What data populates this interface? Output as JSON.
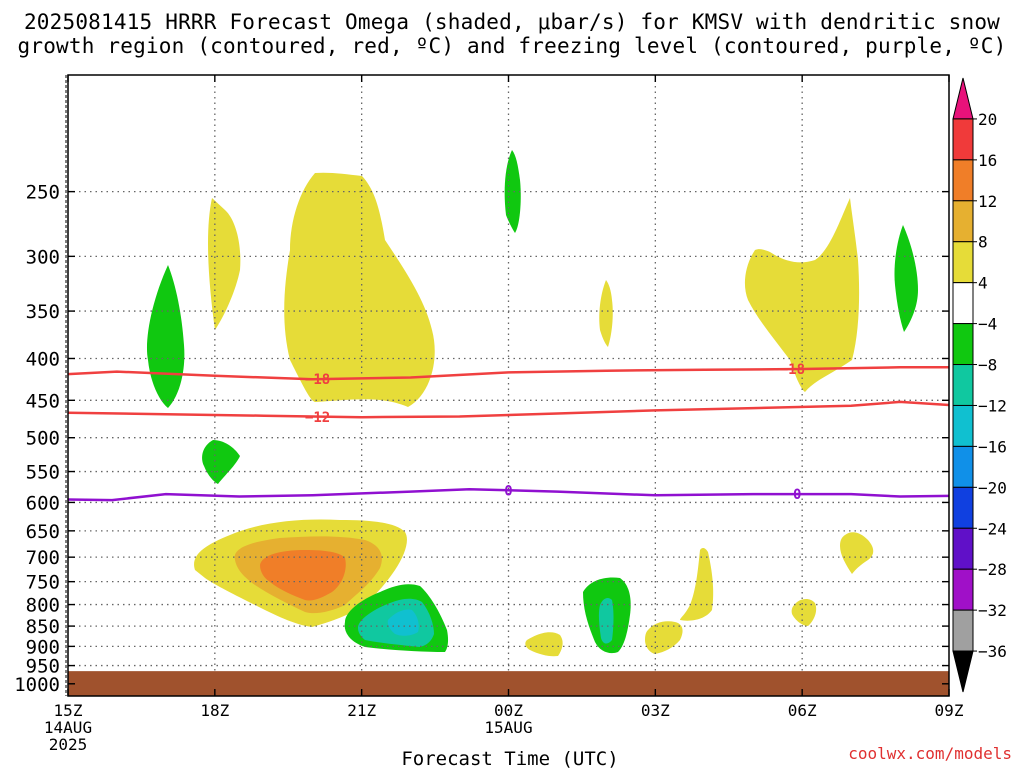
{
  "title_line1": "2025081415 HRRR Forecast Omega (shaded, μbar/s) for KMSV with dendritic snow",
  "title_line2": "growth region (contoured, red, ºC) and freezing level (contoured, purple, ºC)",
  "credit": "coolwx.com/models",
  "chart_data": {
    "type": "heatmap",
    "xlabel": "Forecast Time (UTC)",
    "ylabel": "",
    "x_ticks": [
      {
        "hours": 0,
        "label": [
          "15Z",
          "14AUG",
          "2025"
        ]
      },
      {
        "hours": 3,
        "label": [
          "18Z"
        ]
      },
      {
        "hours": 6,
        "label": [
          "21Z"
        ]
      },
      {
        "hours": 9,
        "label": [
          "00Z",
          "15AUG"
        ]
      },
      {
        "hours": 12,
        "label": [
          "03Z"
        ]
      },
      {
        "hours": 15,
        "label": [
          "06Z"
        ]
      },
      {
        "hours": 18,
        "label": [
          "09Z"
        ]
      }
    ],
    "xlim": [
      0,
      18
    ],
    "ylim_hPa": [
      1035,
      180
    ],
    "y_ticks": [
      250,
      300,
      350,
      400,
      450,
      500,
      550,
      600,
      650,
      700,
      750,
      800,
      850,
      900,
      950,
      1000
    ],
    "grid": true,
    "colorbar": {
      "labels": [
        "20",
        "16",
        "12",
        "8",
        "4",
        "−4",
        "−8",
        "−12",
        "−16",
        "−20",
        "−24",
        "−28",
        "−32",
        "−36"
      ],
      "colors": [
        "#e8127a",
        "#f03a3a",
        "#f07e28",
        "#e6b030",
        "#e6dc38",
        "#ffffff",
        "#10c810",
        "#10c8a0",
        "#10c0d0",
        "#1090e8",
        "#1040e0",
        "#6010c8",
        "#a010c8",
        "#a0a0a0",
        "#000000"
      ]
    },
    "contours": [
      {
        "level": "−18",
        "color": "#f04040",
        "points": [
          [
            0,
            418
          ],
          [
            1,
            415
          ],
          [
            3,
            420
          ],
          [
            5,
            424
          ],
          [
            7,
            422
          ],
          [
            9,
            416
          ],
          [
            11,
            414
          ],
          [
            13,
            413
          ],
          [
            15,
            412
          ],
          [
            17,
            410
          ],
          [
            18,
            410
          ]
        ]
      },
      {
        "level": "−12",
        "color": "#f04040",
        "points": [
          [
            0,
            466
          ],
          [
            2,
            468
          ],
          [
            4,
            470
          ],
          [
            6,
            472
          ],
          [
            8,
            471
          ],
          [
            10,
            467
          ],
          [
            12,
            463
          ],
          [
            14,
            460
          ],
          [
            16,
            457
          ],
          [
            17,
            452
          ],
          [
            18,
            456
          ]
        ]
      },
      {
        "level": "0",
        "color": "#9010d0",
        "points": [
          [
            0,
            595
          ],
          [
            0.9,
            596
          ],
          [
            2,
            586
          ],
          [
            3.5,
            590
          ],
          [
            5,
            588
          ],
          [
            7,
            582
          ],
          [
            8.2,
            578
          ],
          [
            10,
            582
          ],
          [
            12,
            588
          ],
          [
            14,
            586
          ],
          [
            16,
            586
          ],
          [
            17,
            590
          ],
          [
            18,
            589
          ]
        ]
      }
    ],
    "contour_label_positions": [
      {
        "level": "−18",
        "at": [
          5.1,
          424
        ]
      },
      {
        "level": "−18",
        "at": [
          14.8,
          412
        ]
      },
      {
        "level": "−12",
        "at": [
          5.1,
          472
        ]
      },
      {
        "level": "0",
        "at": [
          9.0,
          580
        ]
      },
      {
        "level": "0",
        "at": [
          14.9,
          586
        ]
      }
    ],
    "ground_from_hPa": 965,
    "ground_color": "#a0522d"
  }
}
